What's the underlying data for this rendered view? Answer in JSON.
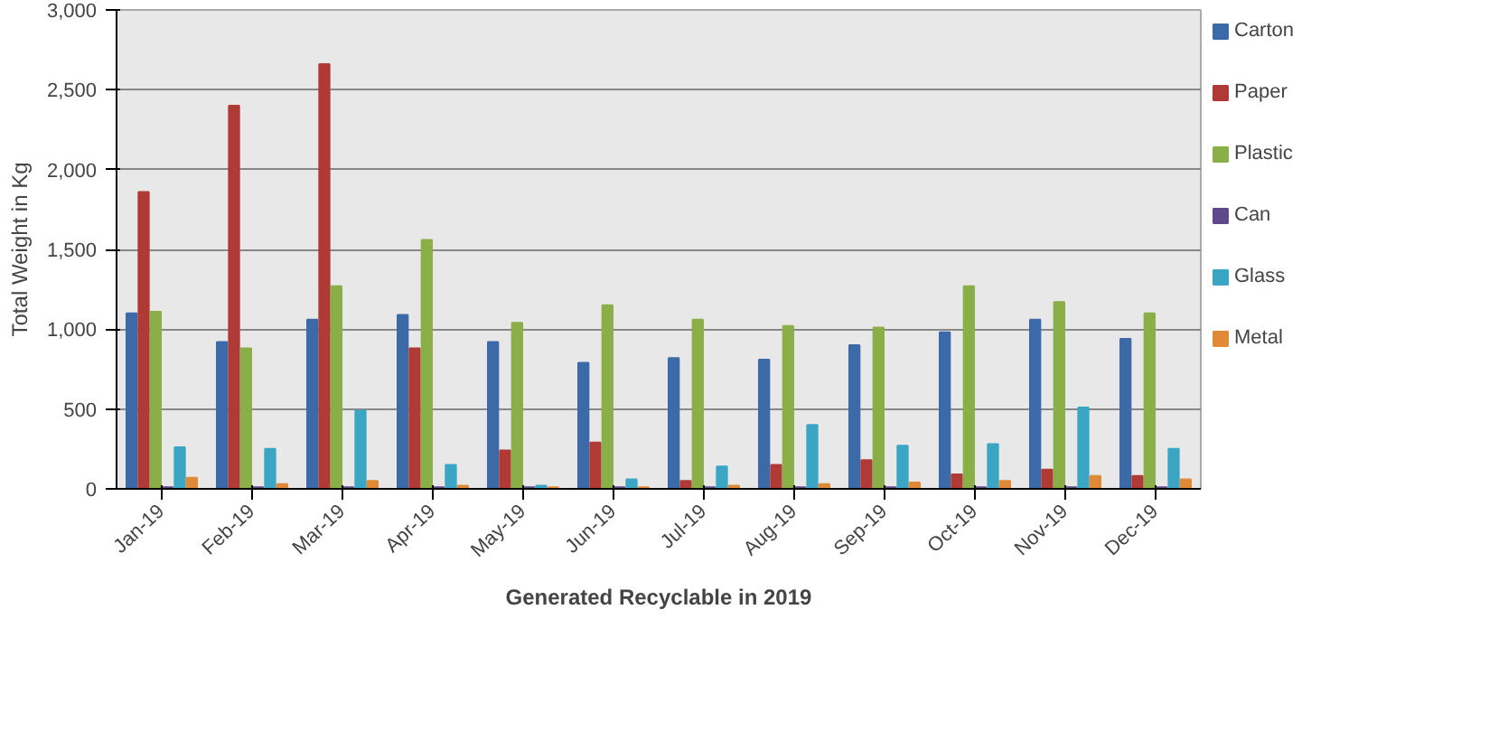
{
  "chart_data": {
    "type": "bar",
    "xlabel": "Generated Recyclable in 2019",
    "ylabel": "Total Weight in Kg",
    "categories": [
      "Jan-19",
      "Feb-19",
      "Mar-19",
      "Apr-19",
      "May-19",
      "Jun-19",
      "Jul-19",
      "Aug-19",
      "Sep-19",
      "Oct-19",
      "Nov-19",
      "Dec-19"
    ],
    "series": [
      {
        "name": "Carton",
        "color": "#3c6aa8",
        "values": [
          1100,
          920,
          1060,
          1090,
          920,
          790,
          820,
          810,
          900,
          980,
          1060,
          940
        ]
      },
      {
        "name": "Paper",
        "color": "#b03a36",
        "values": [
          1860,
          2400,
          2660,
          880,
          240,
          290,
          50,
          150,
          180,
          90,
          120,
          80
        ]
      },
      {
        "name": "Plastic",
        "color": "#8aae48",
        "values": [
          1110,
          880,
          1270,
          1560,
          1040,
          1150,
          1060,
          1020,
          1010,
          1270,
          1170,
          1100
        ]
      },
      {
        "name": "Can",
        "color": "#5e4a8a",
        "values": [
          10,
          10,
          10,
          10,
          10,
          10,
          10,
          10,
          10,
          10,
          10,
          10
        ]
      },
      {
        "name": "Glass",
        "color": "#3aa6c4",
        "values": [
          260,
          250,
          490,
          150,
          20,
          60,
          140,
          400,
          270,
          280,
          510,
          250
        ]
      },
      {
        "name": "Metal",
        "color": "#e08a38",
        "values": [
          70,
          30,
          50,
          20,
          10,
          10,
          20,
          30,
          40,
          50,
          80,
          60
        ]
      }
    ],
    "ylim": [
      0,
      3000
    ],
    "yticks": [
      {
        "value": 0,
        "label": "0"
      },
      {
        "value": 500,
        "label": "500"
      },
      {
        "value": 1000,
        "label": "1,000"
      },
      {
        "value": 1500,
        "label": "1,500"
      },
      {
        "value": 2000,
        "label": "2,000"
      },
      {
        "value": 2500,
        "label": "2,500"
      },
      {
        "value": 3000,
        "label": "3,000"
      }
    ],
    "grid": "y",
    "legend": "right"
  }
}
